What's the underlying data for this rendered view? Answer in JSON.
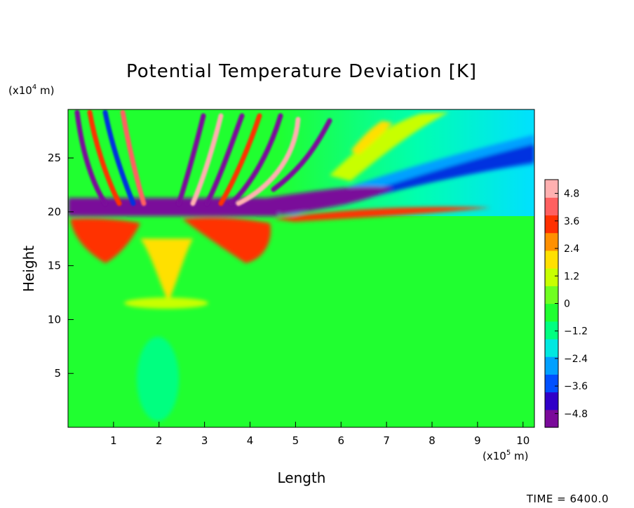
{
  "chart_data": {
    "type": "heatmap",
    "title": "Potential Temperature Deviation [K]",
    "xlabel": "Length",
    "ylabel": "Height",
    "x_unit_label": {
      "prefix": "(x10",
      "exp": "5",
      "suffix": " m)"
    },
    "y_unit_label": {
      "prefix": "(x10",
      "exp": "4",
      "suffix": " m)"
    },
    "xlim": [
      0,
      10.25
    ],
    "ylim": [
      0,
      29.5
    ],
    "x_ticks": [
      1,
      2,
      3,
      4,
      5,
      6,
      7,
      8,
      9,
      10
    ],
    "y_ticks": [
      5,
      10,
      15,
      20,
      25
    ],
    "colorbar": {
      "min": -5.4,
      "max": 5.4,
      "tick_values": [
        4.8,
        3.6,
        2.4,
        1.2,
        0,
        -1.2,
        -2.4,
        -3.6,
        -4.8
      ],
      "tick_labels": [
        "4.8",
        "3.6",
        "2.4",
        "1.2",
        "0",
        "−1.2",
        "−2.4",
        "−3.6",
        "−4.8"
      ],
      "colors": [
        "#7a0a9a",
        "#3000c8",
        "#0050ff",
        "#00a0ff",
        "#00e8e0",
        "#00ff80",
        "#20ff30",
        "#70ff20",
        "#c8ff00",
        "#ffe000",
        "#ff9000",
        "#ff3000",
        "#ff6060",
        "#ffb0b0"
      ]
    },
    "background_value": 0
  },
  "footer": {
    "time_label": "TIME = 6400.0"
  }
}
